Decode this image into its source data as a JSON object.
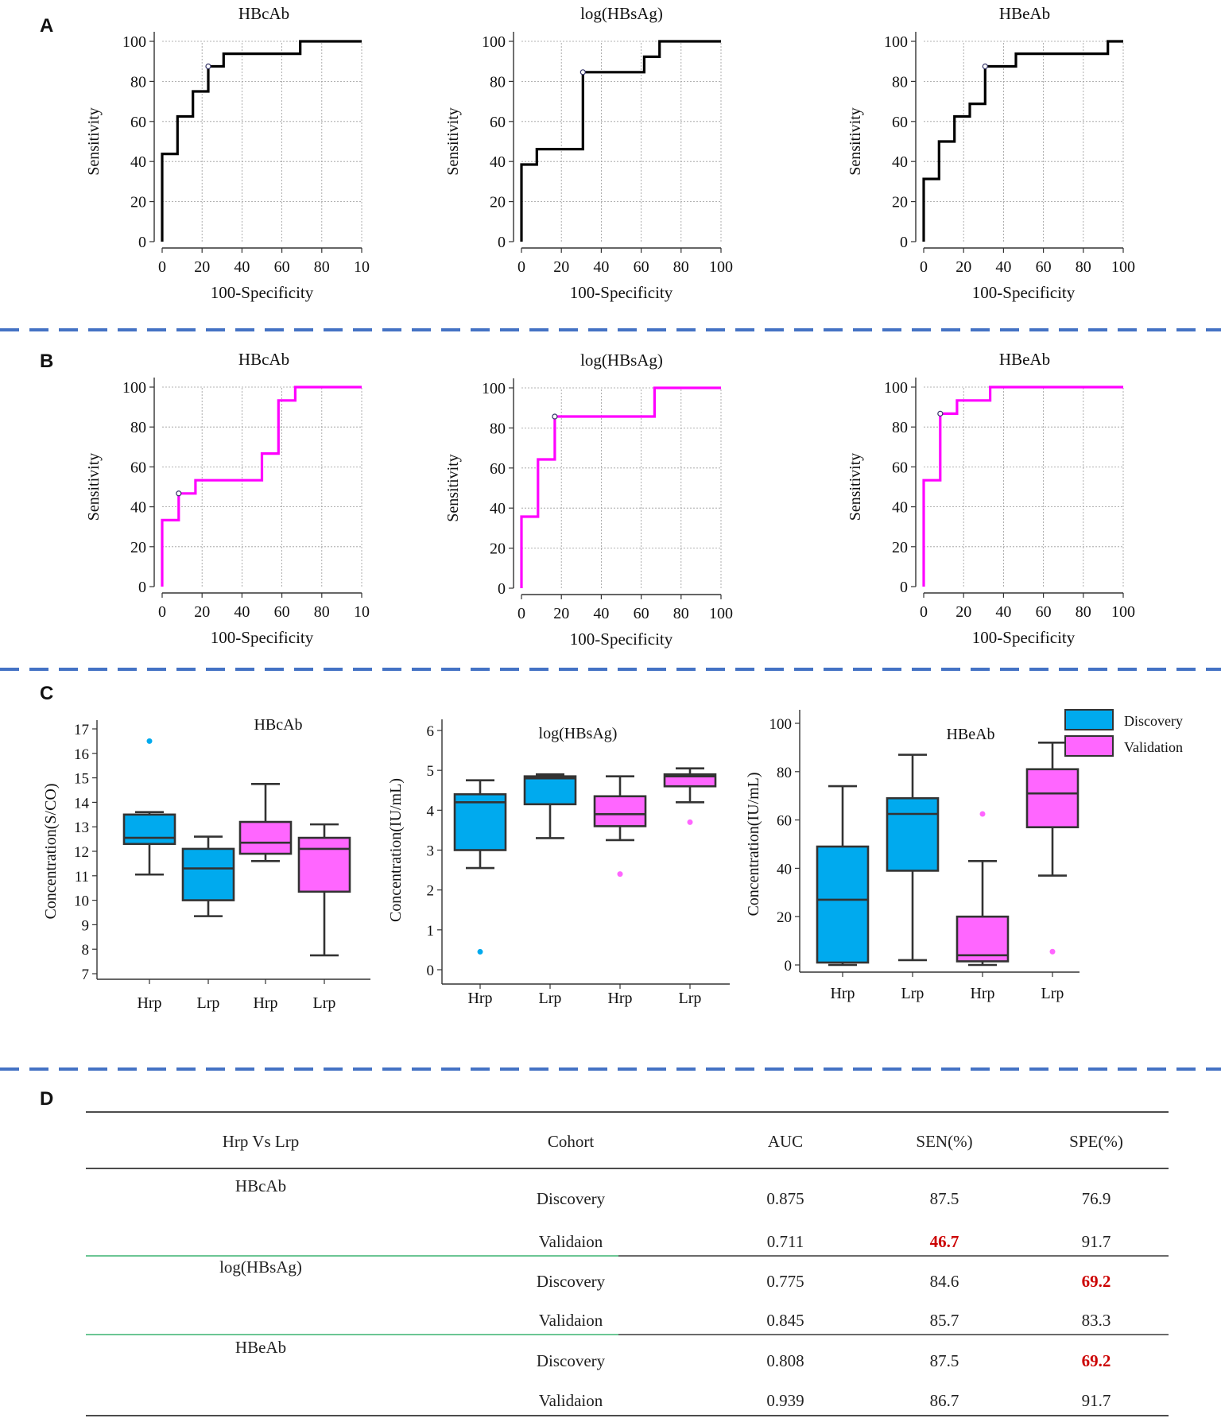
{
  "panel_letters": [
    "A",
    "B",
    "C",
    "D"
  ],
  "colors": {
    "discovery_roc": "#000000",
    "validation_roc": "#ff00ff",
    "discovery_box": "#00aaee",
    "validation_box": "#ff66ff",
    "divider": "#4472c4",
    "highlight": "#cc0000",
    "green_rule": "#3cb371"
  },
  "chart_data": [
    {
      "type": "line",
      "panel": "A",
      "title": "HBcAb",
      "xlabel": "100-Specificity",
      "ylabel": "Sensitivity",
      "xlim": [
        0,
        100
      ],
      "ylim": [
        0,
        100
      ],
      "xticks": [
        "0",
        "20",
        "40",
        "60",
        "80",
        "10"
      ],
      "yticks": [
        "0",
        "20",
        "40",
        "60",
        "80",
        "100"
      ],
      "points": [
        [
          0,
          0
        ],
        [
          0,
          43.8
        ],
        [
          7.7,
          43.8
        ],
        [
          7.7,
          62.5
        ],
        [
          15.4,
          62.5
        ],
        [
          15.4,
          75
        ],
        [
          23.1,
          75
        ],
        [
          23.1,
          87.5
        ],
        [
          30.8,
          87.5
        ],
        [
          30.8,
          93.8
        ],
        [
          69.2,
          93.8
        ],
        [
          69.2,
          100
        ],
        [
          100,
          100
        ]
      ],
      "criterion_point": [
        23.1,
        87.5
      ]
    },
    {
      "type": "line",
      "panel": "A",
      "title": "log(HBsAg)",
      "xlabel": "100-Specificity",
      "ylabel": "Sensitivity",
      "xlim": [
        0,
        100
      ],
      "ylim": [
        0,
        100
      ],
      "xticks": [
        "0",
        "20",
        "40",
        "60",
        "80",
        "100"
      ],
      "yticks": [
        "0",
        "20",
        "40",
        "60",
        "80",
        "100"
      ],
      "points": [
        [
          0,
          0
        ],
        [
          0,
          38.5
        ],
        [
          7.7,
          38.5
        ],
        [
          7.7,
          46.2
        ],
        [
          30.8,
          46.2
        ],
        [
          30.8,
          84.6
        ],
        [
          61.5,
          84.6
        ],
        [
          61.5,
          92.3
        ],
        [
          69.2,
          92.3
        ],
        [
          69.2,
          100
        ],
        [
          100,
          100
        ]
      ],
      "criterion_point": [
        30.8,
        84.6
      ]
    },
    {
      "type": "line",
      "panel": "A",
      "title": "HBeAb",
      "xlabel": "100-Specificity",
      "ylabel": "Sensitivity",
      "xlim": [
        0,
        100
      ],
      "ylim": [
        0,
        100
      ],
      "xticks": [
        "0",
        "20",
        "40",
        "60",
        "80",
        "100"
      ],
      "yticks": [
        "0",
        "20",
        "40",
        "60",
        "80",
        "100"
      ],
      "points": [
        [
          0,
          0
        ],
        [
          0,
          31.3
        ],
        [
          7.7,
          31.3
        ],
        [
          7.7,
          50
        ],
        [
          15.4,
          50
        ],
        [
          15.4,
          62.5
        ],
        [
          23.1,
          62.5
        ],
        [
          23.1,
          68.8
        ],
        [
          30.8,
          68.8
        ],
        [
          30.8,
          87.5
        ],
        [
          46.2,
          87.5
        ],
        [
          46.2,
          93.8
        ],
        [
          92.3,
          93.8
        ],
        [
          92.3,
          100
        ],
        [
          100,
          100
        ]
      ],
      "criterion_point": [
        30.8,
        87.5
      ]
    },
    {
      "type": "line",
      "panel": "B",
      "title": "HBcAb",
      "xlabel": "100-Specificity",
      "ylabel": "Sensitivity",
      "xlim": [
        0,
        100
      ],
      "ylim": [
        0,
        100
      ],
      "xticks": [
        "0",
        "20",
        "40",
        "60",
        "80",
        "10"
      ],
      "yticks": [
        "0",
        "20",
        "40",
        "60",
        "80",
        "100"
      ],
      "points": [
        [
          0,
          0
        ],
        [
          0,
          33.3
        ],
        [
          8.3,
          33.3
        ],
        [
          8.3,
          46.7
        ],
        [
          16.7,
          46.7
        ],
        [
          16.7,
          53.3
        ],
        [
          50,
          53.3
        ],
        [
          50,
          66.7
        ],
        [
          58.3,
          66.7
        ],
        [
          58.3,
          93.3
        ],
        [
          66.7,
          93.3
        ],
        [
          66.7,
          100
        ],
        [
          100,
          100
        ]
      ],
      "criterion_point": [
        8.3,
        46.7
      ]
    },
    {
      "type": "line",
      "panel": "B",
      "title": "log(HBsAg)",
      "xlabel": "100-Specificity",
      "ylabel": "Sensitivity",
      "xlim": [
        0,
        100
      ],
      "ylim": [
        0,
        100
      ],
      "xticks": [
        "0",
        "20",
        "40",
        "60",
        "80",
        "100"
      ],
      "yticks": [
        "0",
        "20",
        "40",
        "60",
        "80",
        "100"
      ],
      "points": [
        [
          0,
          0
        ],
        [
          0,
          35.7
        ],
        [
          8.3,
          35.7
        ],
        [
          8.3,
          64.3
        ],
        [
          16.7,
          64.3
        ],
        [
          16.7,
          85.7
        ],
        [
          66.7,
          85.7
        ],
        [
          66.7,
          100
        ],
        [
          100,
          100
        ]
      ],
      "criterion_point": [
        16.7,
        85.7
      ]
    },
    {
      "type": "line",
      "panel": "B",
      "title": "HBeAb",
      "xlabel": "100-Specificity",
      "ylabel": "Sensitivity",
      "xlim": [
        0,
        100
      ],
      "ylim": [
        0,
        100
      ],
      "xticks": [
        "0",
        "20",
        "40",
        "60",
        "80",
        "100"
      ],
      "yticks": [
        "0",
        "20",
        "40",
        "60",
        "80",
        "100"
      ],
      "points": [
        [
          0,
          0
        ],
        [
          0,
          53.3
        ],
        [
          8.3,
          53.3
        ],
        [
          8.3,
          86.7
        ],
        [
          16.7,
          86.7
        ],
        [
          16.7,
          93.3
        ],
        [
          33.3,
          93.3
        ],
        [
          33.3,
          100
        ],
        [
          100,
          100
        ]
      ],
      "criterion_point": [
        8.3,
        86.7
      ]
    },
    {
      "type": "box",
      "panel": "C",
      "title": "HBcAb",
      "ylabel": "Concentration(S/CO)",
      "ylim": [
        7,
        17
      ],
      "yticks": [
        "7",
        "8",
        "9",
        "10",
        "11",
        "12",
        "13",
        "14",
        "15",
        "16",
        "17"
      ],
      "categories": [
        "Hrp",
        "Lrp",
        "Hrp",
        "Lrp"
      ],
      "boxes": [
        {
          "group": "Discovery",
          "min": 11.05,
          "q1": 12.3,
          "median": 12.55,
          "q3": 13.5,
          "max": 13.6,
          "outliers": [
            16.5
          ]
        },
        {
          "group": "Discovery",
          "min": 9.35,
          "q1": 10.0,
          "median": 11.3,
          "q3": 12.1,
          "max": 12.6,
          "outliers": []
        },
        {
          "group": "Validation",
          "min": 11.6,
          "q1": 11.9,
          "median": 12.35,
          "q3": 13.2,
          "max": 14.75,
          "outliers": []
        },
        {
          "group": "Validation",
          "min": 7.75,
          "q1": 10.35,
          "median": 12.1,
          "q3": 12.55,
          "max": 13.1,
          "outliers": []
        }
      ]
    },
    {
      "type": "box",
      "panel": "C",
      "title": "log(HBsAg)",
      "ylabel": "Concentration(IU/mL)",
      "ylim": [
        0,
        6
      ],
      "yticks": [
        "0",
        "1",
        "2",
        "3",
        "4",
        "5",
        "6"
      ],
      "categories": [
        "Hrp",
        "Lrp",
        "Hrp",
        "Lrp"
      ],
      "boxes": [
        {
          "group": "Discovery",
          "min": 2.55,
          "q1": 3.0,
          "median": 4.2,
          "q3": 4.4,
          "max": 4.75,
          "outliers": [
            0.45
          ]
        },
        {
          "group": "Discovery",
          "min": 3.3,
          "q1": 4.15,
          "median": 4.8,
          "q3": 4.85,
          "max": 4.9,
          "outliers": []
        },
        {
          "group": "Validation",
          "min": 3.25,
          "q1": 3.6,
          "median": 3.9,
          "q3": 4.35,
          "max": 4.85,
          "outliers": [
            2.4
          ]
        },
        {
          "group": "Validation",
          "min": 4.2,
          "q1": 4.6,
          "median": 4.85,
          "q3": 4.9,
          "max": 5.05,
          "outliers": [
            3.7
          ]
        }
      ]
    },
    {
      "type": "box",
      "panel": "C",
      "title": "HBeAb",
      "ylabel": "Concentration(IU/mL)",
      "ylim": [
        0,
        100
      ],
      "yticks": [
        "0",
        "20",
        "40",
        "60",
        "80",
        "100"
      ],
      "categories": [
        "Hrp",
        "Lrp",
        "Hrp",
        "Lrp"
      ],
      "legend": [
        "Discovery",
        "Validation"
      ],
      "boxes": [
        {
          "group": "Discovery",
          "min": 0,
          "q1": 1,
          "median": 27,
          "q3": 49,
          "max": 74,
          "outliers": []
        },
        {
          "group": "Discovery",
          "min": 2,
          "q1": 39,
          "median": 62.5,
          "q3": 69,
          "max": 87,
          "outliers": []
        },
        {
          "group": "Validation",
          "min": 0,
          "q1": 1.5,
          "median": 4,
          "q3": 20,
          "max": 43,
          "outliers": [
            62.5
          ]
        },
        {
          "group": "Validation",
          "min": 37,
          "q1": 57,
          "median": 71,
          "q3": 81,
          "max": 92,
          "outliers": [
            5.5
          ]
        }
      ]
    },
    {
      "type": "table",
      "panel": "D",
      "columns": [
        "Hrp Vs Lrp",
        "Cohort",
        "AUC",
        "SEN(%)",
        "SPE(%)"
      ],
      "rows": [
        {
          "marker": "HBcAb",
          "cohort": "Discovery",
          "auc": "0.875",
          "sen": "87.5",
          "spe": "76.9"
        },
        {
          "marker": "",
          "cohort": "Validaion",
          "auc": "0.711",
          "sen": "46.7",
          "spe": "91.7",
          "sen_highlight": true
        },
        {
          "marker": "log(HBsAg)",
          "cohort": "Discovery",
          "auc": "0.775",
          "sen": "84.6",
          "spe": "69.2",
          "spe_highlight": true
        },
        {
          "marker": "",
          "cohort": "Validaion",
          "auc": "0.845",
          "sen": "85.7",
          "spe": "83.3"
        },
        {
          "marker": "HBeAb",
          "cohort": "Discovery",
          "auc": "0.808",
          "sen": "87.5",
          "spe": "69.2",
          "spe_highlight": true
        },
        {
          "marker": "",
          "cohort": "Validaion",
          "auc": "0.939",
          "sen": "86.7",
          "spe": "91.7"
        }
      ]
    }
  ]
}
